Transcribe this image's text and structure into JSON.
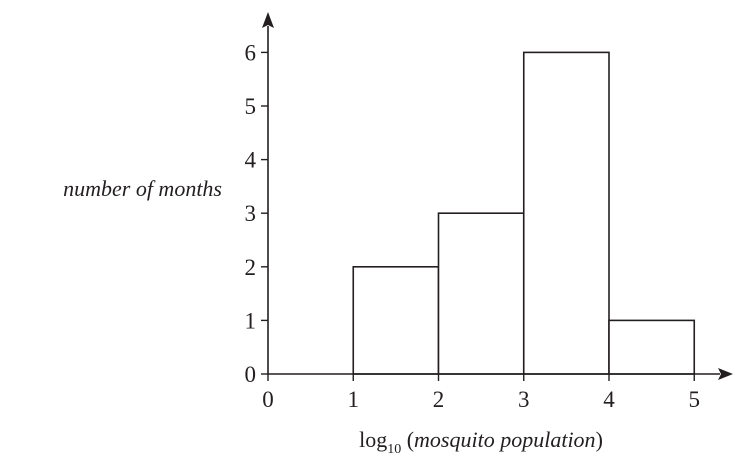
{
  "chart_data": {
    "type": "histogram",
    "xlabel": {
      "prefix": "log",
      "subscript": "10",
      "open": " (",
      "variable": "mosquito population",
      "close": ")"
    },
    "ylabel": "number of months",
    "xlim": [
      0,
      5
    ],
    "ylim": [
      0,
      6
    ],
    "x_ticks": [
      "0",
      "1",
      "2",
      "3",
      "4",
      "5"
    ],
    "y_ticks": [
      "0",
      "1",
      "2",
      "3",
      "4",
      "5",
      "6"
    ],
    "bins": [
      {
        "x0": 1,
        "x1": 2,
        "count": 2
      },
      {
        "x0": 2,
        "x1": 3,
        "count": 3
      },
      {
        "x0": 3,
        "x1": 4,
        "count": 6
      },
      {
        "x0": 4,
        "x1": 5,
        "count": 1
      }
    ],
    "colors": {
      "stroke": "#231f20",
      "fill": "#ffffff"
    }
  }
}
